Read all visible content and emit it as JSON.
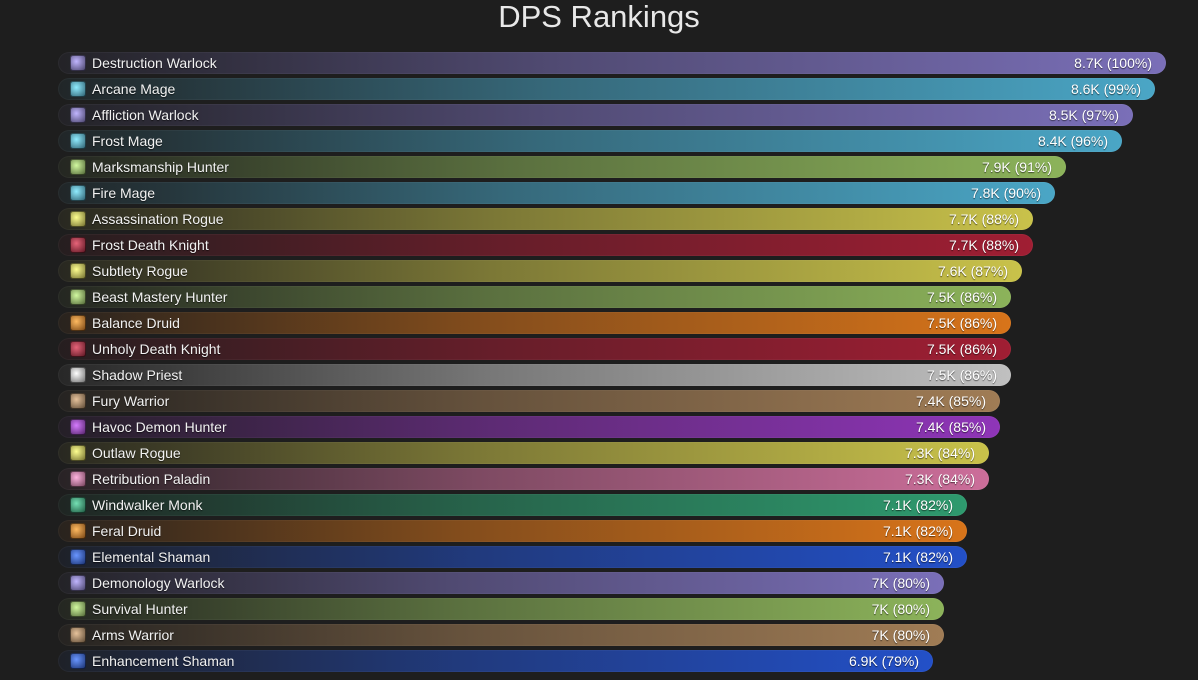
{
  "chart_data": {
    "type": "bar",
    "orientation": "horizontal",
    "title": "DPS Rankings",
    "xlabel": "",
    "ylabel": "",
    "grid": false,
    "legend": "none",
    "categories": [
      "Destruction Warlock",
      "Arcane Mage",
      "Affliction Warlock",
      "Frost Mage",
      "Marksmanship Hunter",
      "Fire Mage",
      "Assassination Rogue",
      "Frost Death Knight",
      "Subtlety Rogue",
      "Beast Mastery Hunter",
      "Balance Druid",
      "Unholy Death Knight",
      "Shadow Priest",
      "Fury Warrior",
      "Havoc Demon Hunter",
      "Outlaw Rogue",
      "Retribution Paladin",
      "Windwalker Monk",
      "Feral Druid",
      "Elemental Shaman",
      "Demonology Warlock",
      "Survival Hunter",
      "Arms Warrior",
      "Enhancement Shaman"
    ],
    "values": [
      100,
      99,
      97,
      96,
      91,
      90,
      88,
      88,
      87,
      86,
      86,
      86,
      86,
      85,
      85,
      84,
      84,
      82,
      82,
      82,
      80,
      80,
      80,
      79
    ],
    "value_labels": [
      "8.7K (100%)",
      "8.6K (99%)",
      "8.5K (97%)",
      "8.4K (96%)",
      "7.9K (91%)",
      "7.8K (90%)",
      "7.7K (88%)",
      "7.7K (88%)",
      "7.6K (87%)",
      "7.5K (86%)",
      "7.5K (86%)",
      "7.5K (86%)",
      "7.5K (86%)",
      "7.4K (85%)",
      "7.4K (85%)",
      "7.3K (84%)",
      "7.3K (84%)",
      "7.1K (82%)",
      "7.1K (82%)",
      "7.1K (82%)",
      "7K (80%)",
      "7K (80%)",
      "7K (80%)",
      "6.9K (79%)"
    ],
    "icons": [
      "destruction-warlock-icon",
      "arcane-mage-icon",
      "affliction-warlock-icon",
      "frost-mage-icon",
      "marksmanship-hunter-icon",
      "fire-mage-icon",
      "assassination-rogue-icon",
      "frost-death-knight-icon",
      "subtlety-rogue-icon",
      "beast-mastery-hunter-icon",
      "balance-druid-icon",
      "unholy-death-knight-icon",
      "shadow-priest-icon",
      "fury-warrior-icon",
      "havoc-demon-hunter-icon",
      "outlaw-rogue-icon",
      "retribution-paladin-icon",
      "windwalker-monk-icon",
      "feral-druid-icon",
      "elemental-shaman-icon",
      "demonology-warlock-icon",
      "survival-hunter-icon",
      "arms-warrior-icon",
      "enhancement-shaman-icon"
    ],
    "colors": [
      "#7a6fb8",
      "#4aa6c6",
      "#7a6fb8",
      "#4aa6c6",
      "#8cb35a",
      "#4aa6c6",
      "#c9c24a",
      "#a01e33",
      "#c9c24a",
      "#8cb35a",
      "#d8741a",
      "#a01e33",
      "#c0c0c0",
      "#a07c55",
      "#8f35b8",
      "#c9c24a",
      "#cc6e9a",
      "#2e9a6e",
      "#d8741a",
      "#2350c8",
      "#7a6fb8",
      "#8cb35a",
      "#a07c55",
      "#2350c8"
    ],
    "xlim": [
      0,
      100
    ]
  }
}
